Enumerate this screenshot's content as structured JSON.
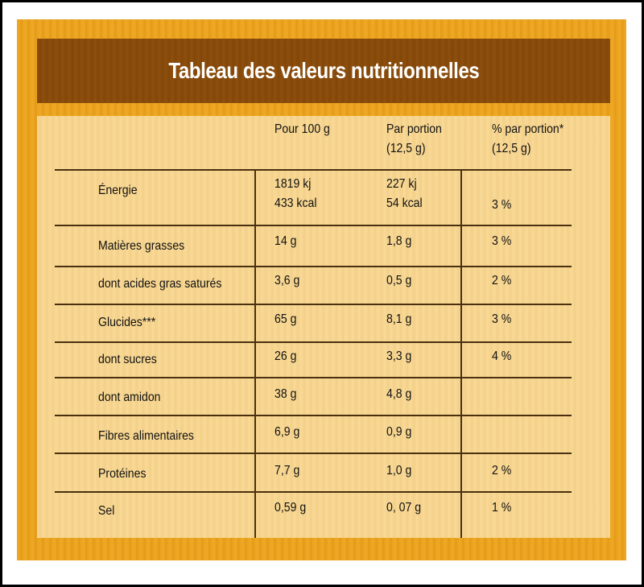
{
  "title": "Tableau des valeurs nutritionnelles",
  "headers": {
    "per100": "Pour 100 g",
    "portion_l1": "Par portion",
    "portion_l2": "(12,5 g)",
    "pct_l1": "% par portion*",
    "pct_l2": "(12,5 g)"
  },
  "rows": [
    {
      "label": "Énergie",
      "per100": [
        "1819 kj",
        "433 kcal"
      ],
      "portion": [
        "227 kj",
        "54 kcal"
      ],
      "pct": "3 %"
    },
    {
      "label": "Matières grasses",
      "per100": [
        "14 g"
      ],
      "portion": [
        "1,8 g"
      ],
      "pct": "3 %"
    },
    {
      "label": "dont acides gras saturés",
      "per100": [
        "3,6 g"
      ],
      "portion": [
        "0,5 g"
      ],
      "pct": "2 %"
    },
    {
      "label": "Glucides***",
      "per100": [
        "65 g"
      ],
      "portion": [
        "8,1 g"
      ],
      "pct": "3 %"
    },
    {
      "label": "dont sucres",
      "per100": [
        "26 g"
      ],
      "portion": [
        "3,3 g"
      ],
      "pct": "4 %"
    },
    {
      "label": "dont amidon",
      "per100": [
        "38 g"
      ],
      "portion": [
        "4,8 g"
      ],
      "pct": ""
    },
    {
      "label": "Fibres alimentaires",
      "per100": [
        "6,9 g"
      ],
      "portion": [
        "0,9 g"
      ],
      "pct": ""
    },
    {
      "label": "Protéines",
      "per100": [
        "7,7 g"
      ],
      "portion": [
        "1,0 g"
      ],
      "pct": "2 %"
    },
    {
      "label": "Sel",
      "per100": [
        "0,59 g"
      ],
      "portion": [
        "0, 07 g"
      ],
      "pct": "1 %"
    }
  ]
}
